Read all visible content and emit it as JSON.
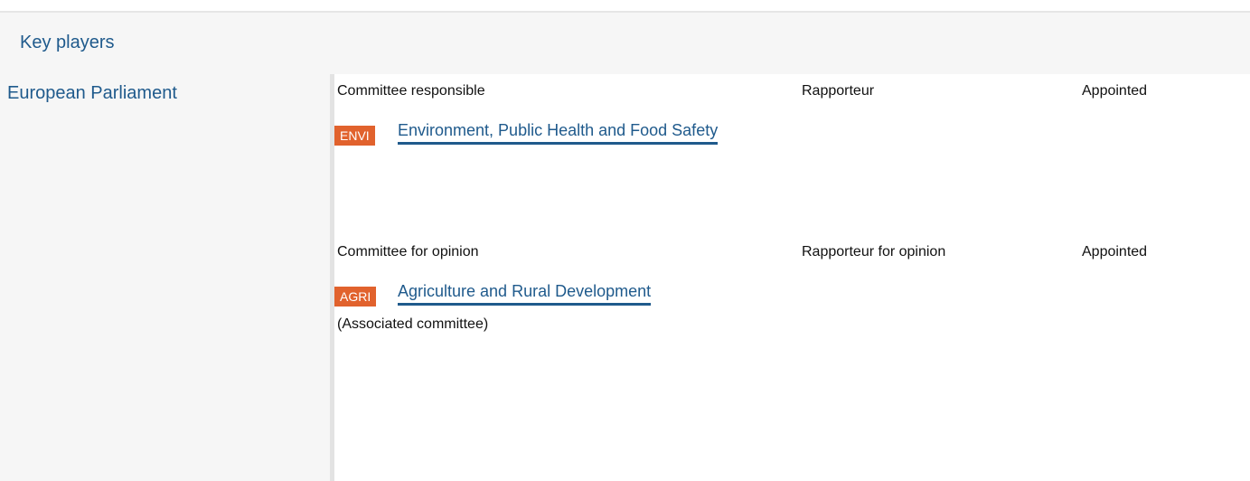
{
  "header": {
    "title": "Key players"
  },
  "section": {
    "label": "European Parliament",
    "blocks": [
      {
        "columns": [
          "Committee responsible",
          "Rapporteur",
          "Appointed"
        ],
        "badge": "ENVI",
        "link": "Environment, Public Health and Food Safety",
        "note": null
      },
      {
        "columns": [
          "Committee for opinion",
          "Rapporteur for opinion",
          "Appointed"
        ],
        "badge": "AGRI",
        "link": "Agriculture and Rural Development",
        "note": "(Associated committee)"
      }
    ]
  }
}
